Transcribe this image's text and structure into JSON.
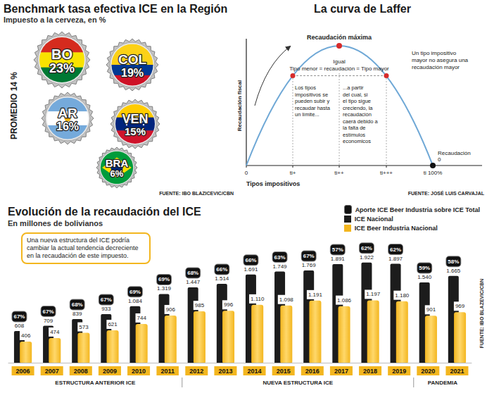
{
  "benchmark": {
    "title": "Benchmark tasa efectiva ICE en la Región",
    "subtitle": "Impuesto a la cerveza, en %",
    "average": "PROMEDIO 14 %",
    "caps": [
      {
        "country": "BO",
        "rate": "23%"
      },
      {
        "country": "COL",
        "rate": "19%"
      },
      {
        "country": "AR",
        "rate": "16%"
      },
      {
        "country": "VEN",
        "rate": "15%"
      },
      {
        "country": "BRA",
        "rate": "6%"
      }
    ],
    "source": "FUENTE: IBO BLAZICEVIC/CBN"
  },
  "laffer": {
    "title": "La curva de Laffer",
    "peak": "Recaudación máxima",
    "equal": "Igual",
    "equation": "Tipo menor = recaudación = Tipo mayor",
    "right_note": "Un tipo impositivo mayor no asegura una recaudación mayor",
    "left_text": "Los tipos impositivos se pueden subir y recaudar hasta un límite...",
    "right_text": "...a partir del cual, si el tipo sigue creciendo, la recaudación caerá debido a la falta de estímulos economicos",
    "y_label": "Recaudación fiscal",
    "x_label": "Tipos impositivos",
    "x_ticks": [
      "0",
      "ti+",
      "ti++",
      "ti+++",
      "ti 100%"
    ],
    "end_label": [
      "Recaudación",
      "0"
    ],
    "source": "FUENTE: JOSÉ LUIS CARVAJAL"
  },
  "chart_data": {
    "type": "bar",
    "title": "Evolución de la recaudación del ICE",
    "subtitle": "En millones de bolivianos",
    "note": "Una nueva estructura del ICE podría cambiar la actual tendencia decreciente en la recaudación de este impuesto.",
    "source": "FUENTE: IBO BLAZEVIC/CBN",
    "categories": [
      "2006",
      "2007",
      "2008",
      "2009",
      "2010",
      "2011",
      "2012",
      "2013",
      "2014",
      "2015",
      "2016",
      "2017",
      "2018",
      "2019",
      "2020",
      "2021"
    ],
    "groups": [
      {
        "label": "ESTRUCTURA ANTERIOR ICE",
        "from": "2006",
        "to": "2011"
      },
      {
        "label": "NUEVA ESTRUCTURA ICE",
        "from": "2012",
        "to": "2019"
      },
      {
        "label": "PANDEMIA",
        "from": "2020",
        "to": "2021"
      }
    ],
    "series": [
      {
        "name": "Aporte ICE Beer Industria sobre ICE Total",
        "type": "badge",
        "color": "#111111",
        "values": [
          67,
          67,
          68,
          67,
          69,
          69,
          68,
          66,
          66,
          63,
          67,
          57,
          62,
          62,
          59,
          58
        ],
        "value_labels": [
          "67%",
          "67%",
          "68%",
          "67%",
          "69%",
          "69%",
          "68%",
          "66%",
          "66%",
          "63%",
          "67%",
          "57%",
          "62%",
          "62%",
          "59%",
          "58%"
        ]
      },
      {
        "name": "ICE Nacional",
        "color": "#1c1c1c",
        "values": [
          608,
          709,
          839,
          933,
          1084,
          1319,
          1447,
          1514,
          1691,
          1749,
          1769,
          1891,
          1922,
          1897,
          1540,
          1665
        ],
        "value_labels": [
          "608",
          "709",
          "839",
          "933",
          "1.084",
          "1.319",
          "1.447",
          "1.514",
          "1.691",
          "1.749",
          "1.769",
          "1.891",
          "1.922",
          "1.897",
          "1.540",
          "1.665"
        ]
      },
      {
        "name": "ICE Beer Industria Nacional",
        "color": "#f3b61f",
        "values": [
          406,
          474,
          573,
          621,
          744,
          906,
          985,
          996,
          1110,
          1098,
          1191,
          1086,
          1197,
          1180,
          901,
          969
        ],
        "value_labels": [
          "406",
          "474",
          "573",
          "621",
          "744",
          "906",
          "985",
          "996",
          "1.110",
          "1.098",
          "1.191",
          "1.086",
          "1.197",
          "1.180",
          "901",
          "969"
        ]
      }
    ],
    "ylim": [
      0,
      2500
    ],
    "tick_labels": "x",
    "data_labels": true,
    "legend": "top-right",
    "grid": false
  }
}
